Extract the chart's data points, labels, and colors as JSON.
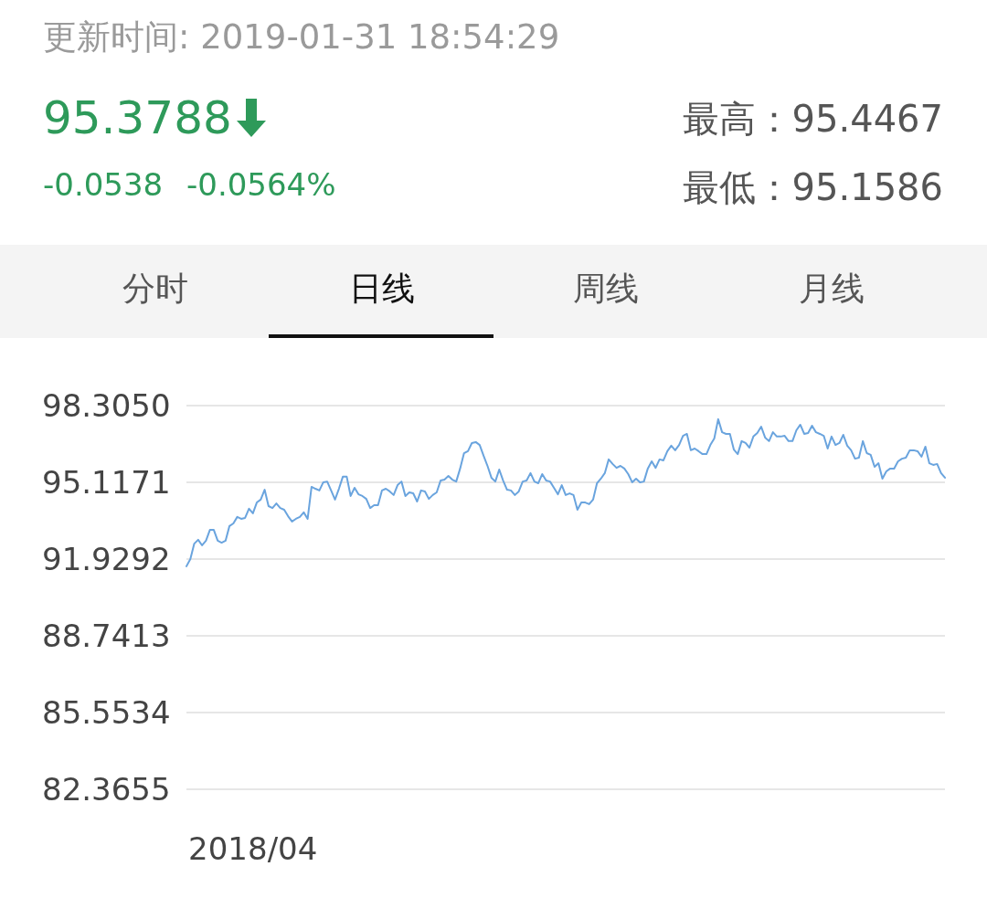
{
  "chart_data": {
    "type": "line",
    "annotations": [
      "更新时间: 2019-01-31 18:54:29",
      "95.3788",
      "-0.0538",
      "-0.0564%",
      "最高：95.4467",
      "最低：95.1586",
      "分时",
      "日线",
      "周线",
      "月线"
    ],
    "categories": [
      null,
      null,
      null,
      null,
      null,
      null,
      null,
      null,
      null,
      null,
      null,
      null,
      null,
      null,
      null,
      null,
      null,
      "2018/04",
      null,
      null,
      null,
      null,
      null,
      null,
      null,
      null,
      null,
      null,
      null,
      null,
      null,
      null,
      null,
      null,
      null,
      null,
      null,
      null,
      null,
      null,
      null,
      null,
      null,
      null,
      null,
      null,
      null,
      null,
      null,
      null,
      null,
      null,
      null,
      null,
      null,
      null,
      null,
      null,
      null,
      null,
      null,
      null,
      null,
      null,
      null,
      null,
      null,
      null,
      null,
      null,
      null,
      null,
      null,
      null,
      null,
      null,
      null,
      null,
      null,
      null,
      null,
      null,
      null,
      null,
      null,
      null,
      null,
      null,
      null,
      null,
      null,
      null,
      null,
      null,
      null,
      null,
      null,
      null,
      null,
      null,
      null,
      null,
      null,
      null,
      null,
      null,
      null,
      null,
      null,
      null,
      null,
      null,
      null,
      null,
      null,
      null,
      null,
      null,
      null,
      null,
      null,
      null,
      null,
      null,
      null,
      null,
      null,
      null,
      null,
      null,
      null,
      null,
      null,
      null,
      null,
      null,
      null,
      null,
      null,
      null,
      null,
      null,
      null,
      null,
      null,
      null,
      null,
      null,
      null,
      null,
      null,
      null,
      null,
      null,
      null,
      null,
      null,
      null,
      null,
      null,
      null,
      null,
      null,
      null,
      null,
      null,
      null,
      null,
      null,
      null,
      null,
      null,
      null,
      null,
      null,
      null,
      null,
      null,
      null,
      null,
      null,
      null,
      null,
      null,
      null,
      null,
      null,
      null,
      null,
      null,
      null,
      null,
      null,
      null,
      null
    ],
    "series": [
      {
        "color": "#6aa4de",
        "values": [
          91.63,
          91.93,
          92.57,
          92.73,
          92.5,
          92.69,
          93.14,
          93.14,
          92.69,
          92.61,
          92.69,
          93.3,
          93.41,
          93.68,
          93.6,
          93.64,
          94.02,
          93.83,
          94.28,
          94.4,
          94.81,
          94.13,
          94.05,
          94.24,
          94.05,
          93.98,
          93.71,
          93.49,
          93.6,
          93.68,
          93.87,
          93.6,
          94.93,
          94.85,
          94.78,
          95.12,
          95.15,
          94.78,
          94.4,
          94.85,
          95.35,
          95.35,
          94.55,
          94.89,
          94.62,
          94.55,
          94.43,
          94.05,
          94.17,
          94.17,
          94.78,
          94.85,
          94.74,
          94.59,
          95.0,
          95.15,
          94.55,
          94.7,
          94.66,
          94.32,
          94.78,
          94.74,
          94.43,
          94.59,
          94.7,
          95.19,
          95.23,
          95.38,
          95.23,
          95.15,
          95.69,
          96.33,
          96.41,
          96.75,
          96.79,
          96.67,
          96.22,
          95.8,
          95.31,
          95.15,
          95.65,
          95.19,
          94.81,
          94.78,
          94.59,
          94.74,
          95.15,
          95.19,
          95.5,
          95.15,
          95.08,
          95.46,
          95.19,
          95.15,
          94.89,
          94.62,
          95.0,
          94.59,
          94.66,
          94.59,
          93.98,
          94.28,
          94.28,
          94.21,
          94.4,
          95.08,
          95.27,
          95.5,
          96.07,
          95.88,
          95.72,
          95.8,
          95.69,
          95.46,
          95.12,
          95.27,
          95.12,
          95.15,
          95.69,
          95.99,
          95.72,
          96.07,
          96.03,
          96.41,
          96.64,
          96.45,
          96.67,
          97.05,
          97.13,
          96.45,
          96.52,
          96.41,
          96.29,
          96.29,
          96.67,
          96.94,
          97.74,
          97.2,
          97.13,
          97.13,
          96.48,
          96.29,
          96.83,
          96.75,
          96.56,
          97.02,
          97.17,
          97.43,
          96.98,
          96.83,
          97.2,
          97.02,
          97.02,
          97.05,
          96.83,
          96.83,
          97.28,
          97.51,
          97.13,
          97.17,
          97.47,
          97.2,
          97.13,
          97.05,
          96.52,
          97.02,
          96.67,
          96.75,
          97.09,
          96.64,
          96.45,
          96.1,
          96.14,
          96.83,
          96.33,
          96.26,
          95.76,
          95.91,
          95.27,
          95.57,
          95.69,
          95.69,
          95.99,
          96.1,
          96.14,
          96.45,
          96.45,
          96.41,
          96.18,
          96.6,
          95.91,
          95.84,
          95.88,
          95.5,
          95.31
        ]
      }
    ],
    "ylim": [
      82.3655,
      98.305
    ],
    "yticks": [
      82.3655,
      85.5534,
      88.7413,
      91.9292,
      95.1171,
      {
        "value": 98.305,
        "label": "98.3050"
      }
    ],
    "grid": "y",
    "marker": "none",
    "line_style": "solid"
  }
}
